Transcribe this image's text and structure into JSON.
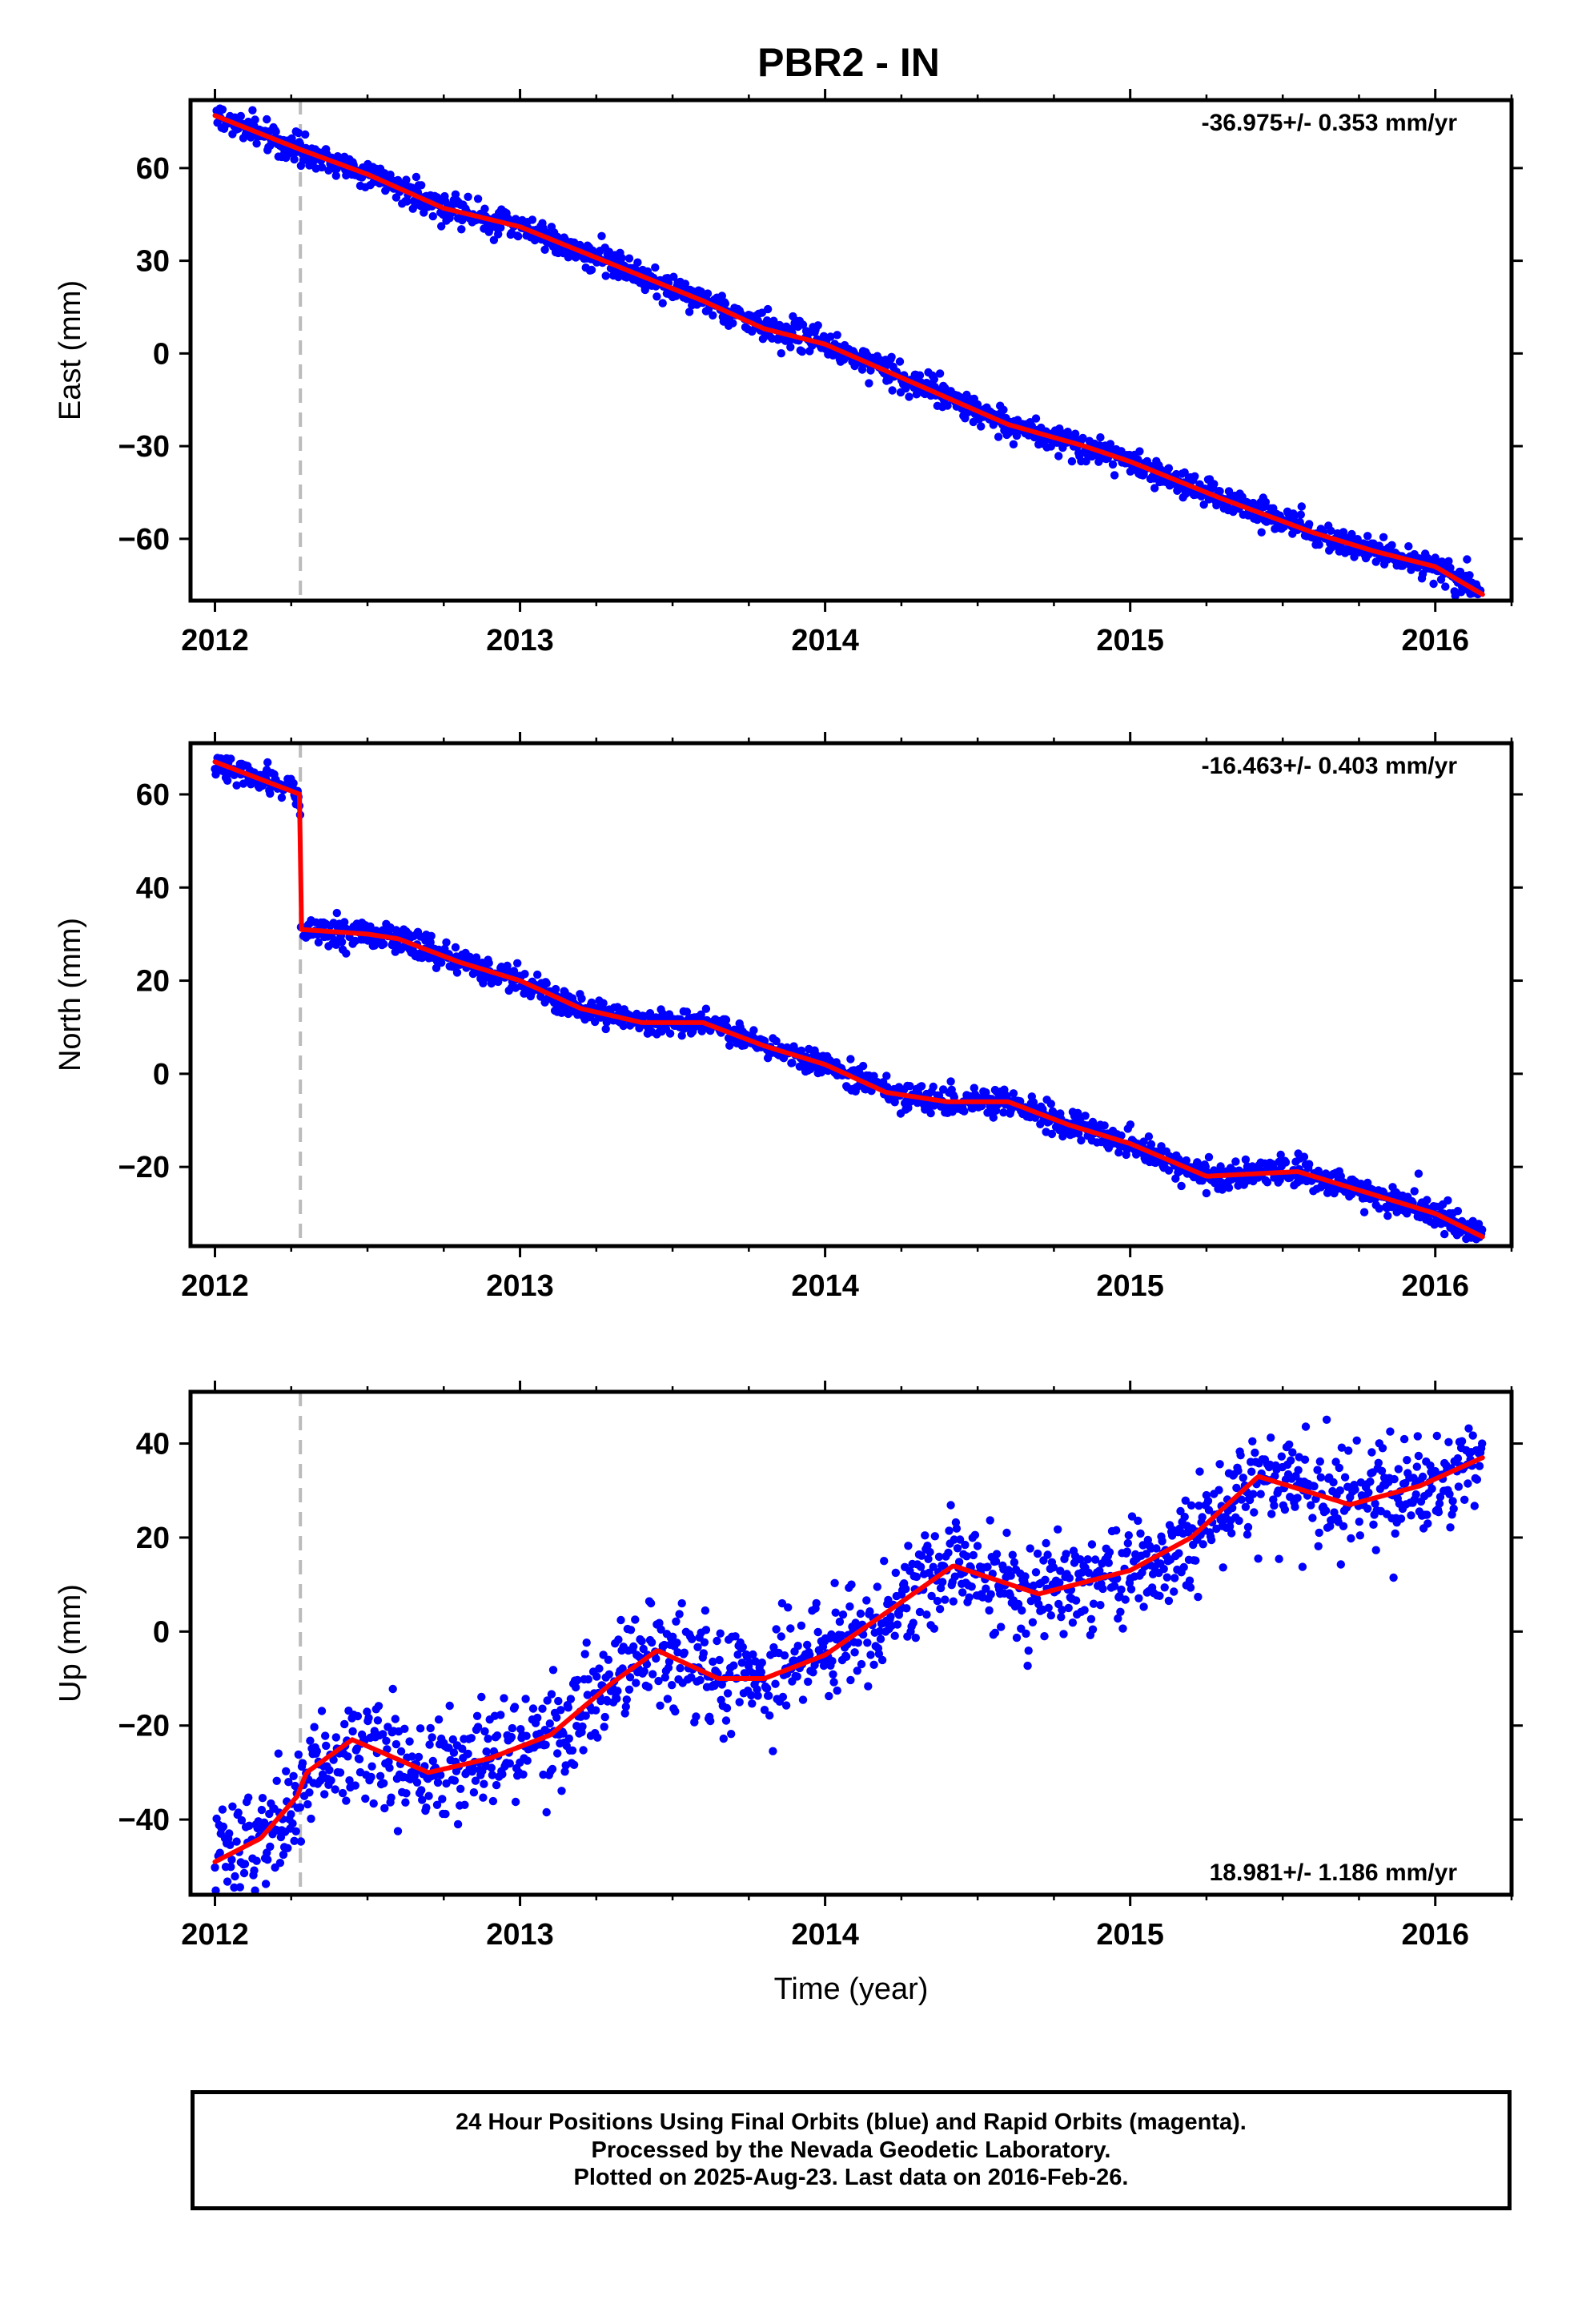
{
  "title": "PBR2 - IN",
  "footer": {
    "line1": "24 Hour Positions Using Final Orbits (blue) and Rapid Orbits (magenta).",
    "line2": "Processed by the Nevada Geodetic Laboratory.",
    "line3": "Plotted on 2025-Aug-23. Last data on 2016-Feb-26."
  },
  "colors": {
    "points": "#0000ff",
    "fit": "#ff0000",
    "equipment_line": "#bbbbbb",
    "frame": "#000000"
  },
  "chart_data": [
    {
      "type": "scatter",
      "component": "east",
      "ylabel": "East (mm)",
      "xlabel": "",
      "rate_label": "-36.975+/- 0.353 mm/yr",
      "rate_position": "top-right",
      "xlim": [
        2011.92,
        2016.25
      ],
      "ylim": [
        -80,
        82
      ],
      "xticks": [
        "2012",
        "2013",
        "2014",
        "2015",
        "2016"
      ],
      "yticks": [
        "60",
        "30",
        "0",
        "-30",
        "-60"
      ],
      "ytick_values": [
        60,
        30,
        0,
        -30,
        -60
      ],
      "equipment_change_x": 2012.28,
      "data_start": 2012.0,
      "data_end": 2016.155,
      "scatter_sigma_mm": 2.2,
      "model_knots": [
        [
          2012.0,
          77
        ],
        [
          2012.28,
          66
        ],
        [
          2012.5,
          58
        ],
        [
          2012.75,
          47
        ],
        [
          2013.0,
          41
        ],
        [
          2013.3,
          29
        ],
        [
          2013.6,
          17
        ],
        [
          2013.8,
          8
        ],
        [
          2014.0,
          3
        ],
        [
          2014.3,
          -10
        ],
        [
          2014.6,
          -23
        ],
        [
          2014.85,
          -30
        ],
        [
          2015.0,
          -35
        ],
        [
          2015.3,
          -47
        ],
        [
          2015.6,
          -58
        ],
        [
          2015.8,
          -64
        ],
        [
          2016.0,
          -69
        ],
        [
          2016.155,
          -78
        ]
      ],
      "grid": false
    },
    {
      "type": "scatter",
      "component": "north",
      "ylabel": "North (mm)",
      "xlabel": "",
      "rate_label": "-16.463+/- 0.403 mm/yr",
      "rate_position": "top-right",
      "xlim": [
        2011.92,
        2016.25
      ],
      "ylim": [
        -37,
        71
      ],
      "xticks": [
        "2012",
        "2013",
        "2014",
        "2015",
        "2016"
      ],
      "yticks": [
        "60",
        "40",
        "20",
        "0",
        "-20"
      ],
      "ytick_values": [
        60,
        40,
        20,
        0,
        -20
      ],
      "equipment_change_x": 2012.28,
      "data_start": 2012.0,
      "data_end": 2016.155,
      "scatter_sigma_mm": 1.4,
      "model_knots": [
        [
          2012.0,
          67
        ],
        [
          2012.279,
          60
        ],
        [
          2012.281,
          31
        ],
        [
          2012.5,
          30
        ],
        [
          2012.6,
          29
        ],
        [
          2012.8,
          24
        ],
        [
          2013.0,
          20
        ],
        [
          2013.2,
          14
        ],
        [
          2013.4,
          11
        ],
        [
          2013.6,
          11
        ],
        [
          2013.8,
          6
        ],
        [
          2014.0,
          2
        ],
        [
          2014.2,
          -4
        ],
        [
          2014.4,
          -6
        ],
        [
          2014.6,
          -6
        ],
        [
          2014.8,
          -11
        ],
        [
          2015.0,
          -15
        ],
        [
          2015.25,
          -22
        ],
        [
          2015.55,
          -21
        ],
        [
          2015.8,
          -26
        ],
        [
          2016.0,
          -30
        ],
        [
          2016.155,
          -35
        ]
      ],
      "grid": false
    },
    {
      "type": "scatter",
      "component": "up",
      "ylabel": "Up (mm)",
      "xlabel": "Time (year)",
      "rate_label": "18.981+/- 1.186 mm/yr",
      "rate_position": "bottom-right",
      "xlim": [
        2011.92,
        2016.25
      ],
      "ylim": [
        -56,
        51
      ],
      "xticks": [
        "2012",
        "2013",
        "2014",
        "2015",
        "2016"
      ],
      "yticks": [
        "40",
        "20",
        "0",
        "-20",
        "-40"
      ],
      "ytick_values": [
        40,
        20,
        0,
        -20,
        -40
      ],
      "equipment_change_x": 2012.28,
      "data_start": 2012.0,
      "data_end": 2016.155,
      "scatter_sigma_mm": 5.5,
      "model_knots": [
        [
          2012.0,
          -49
        ],
        [
          2012.15,
          -44
        ],
        [
          2012.27,
          -35
        ],
        [
          2012.3,
          -30
        ],
        [
          2012.45,
          -23
        ],
        [
          2012.7,
          -30
        ],
        [
          2012.9,
          -27
        ],
        [
          2013.1,
          -22
        ],
        [
          2013.3,
          -11
        ],
        [
          2013.45,
          -4
        ],
        [
          2013.65,
          -10
        ],
        [
          2013.8,
          -10
        ],
        [
          2014.0,
          -5
        ],
        [
          2014.2,
          4
        ],
        [
          2014.42,
          14
        ],
        [
          2014.7,
          8
        ],
        [
          2015.0,
          13
        ],
        [
          2015.2,
          20
        ],
        [
          2015.42,
          33
        ],
        [
          2015.72,
          27
        ],
        [
          2015.95,
          31
        ],
        [
          2016.155,
          37
        ]
      ],
      "grid": false
    }
  ]
}
